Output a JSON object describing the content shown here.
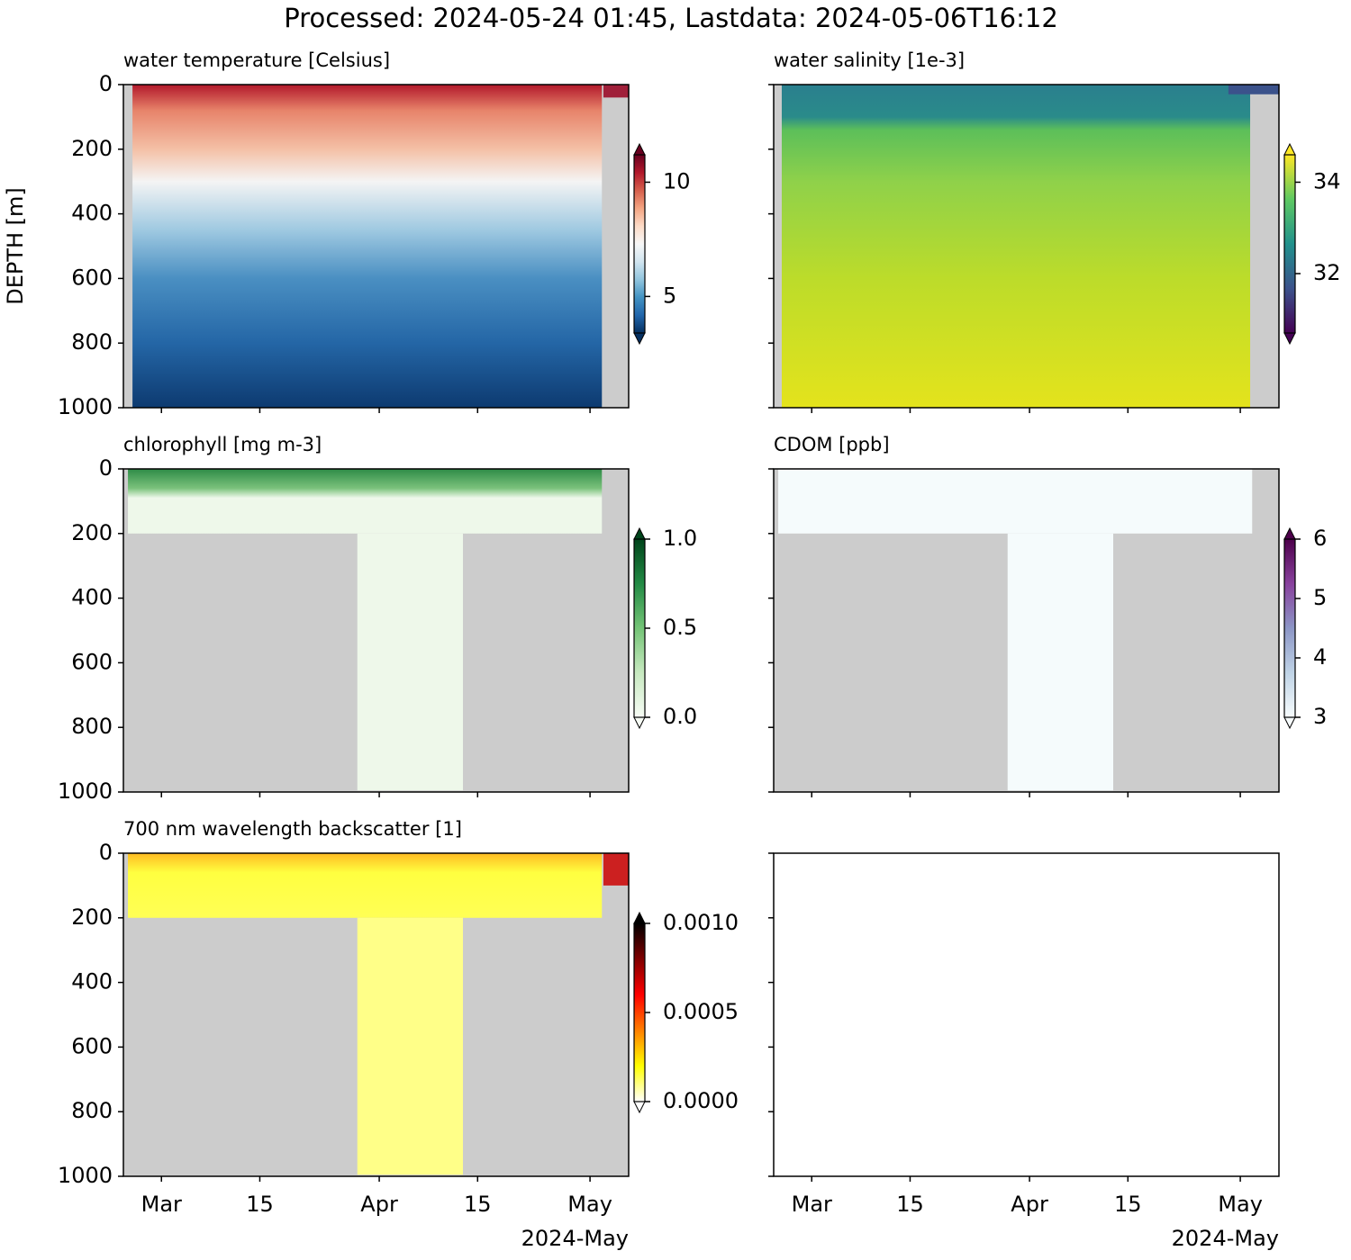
{
  "title": "Processed: 2024-05-24 01:45, Lastdata: 2024-05-06T16:12",
  "chart_data": [
    {
      "type": "heatmap",
      "title": "water temperature [Celsius]",
      "ylabel": "DEPTH [m]",
      "ylim": [
        1000,
        0
      ],
      "yticks": [
        0,
        200,
        400,
        600,
        800,
        1000
      ],
      "ytick_labels": true,
      "xlim": [
        "2024-02-24T14:00",
        "2024-05-06T12:00"
      ],
      "xticks": [
        {
          "value": "2024-03-01",
          "label": "Mar"
        },
        {
          "value": "2024-03-15",
          "label": "15"
        },
        {
          "value": "2024-04-01",
          "label": "Apr"
        },
        {
          "value": "2024-04-15",
          "label": "15"
        },
        {
          "value": "2024-05-01",
          "label": "May"
        }
      ],
      "xtick_labels": false,
      "colorbar": {
        "lim": [
          3.4,
          11.2
        ],
        "ticks": [
          5,
          10
        ],
        "extend": "both",
        "colors": [
          "#053061",
          "#2166ac",
          "#4393c3",
          "#92c5de",
          "#d1e5f0",
          "#f7f7f7",
          "#fddbc7",
          "#f4a582",
          "#d6604d",
          "#b2182b",
          "#67001f"
        ]
      }
    },
    {
      "type": "heatmap",
      "title": "water salinity [1e-3]",
      "ylim": [
        1000,
        0
      ],
      "yticks": [
        0,
        200,
        400,
        600,
        800,
        1000
      ],
      "ytick_labels": false,
      "xlim": [
        "2024-02-24T14:00",
        "2024-05-06T12:00"
      ],
      "xticks": [
        {
          "value": "2024-03-01",
          "label": "Mar"
        },
        {
          "value": "2024-03-15",
          "label": "15"
        },
        {
          "value": "2024-04-01",
          "label": "Apr"
        },
        {
          "value": "2024-04-15",
          "label": "15"
        },
        {
          "value": "2024-05-01",
          "label": "May"
        }
      ],
      "xtick_labels": false,
      "colorbar": {
        "lim": [
          30.7,
          34.6
        ],
        "ticks": [
          32,
          34
        ],
        "extend": "both",
        "colors": [
          "#440154",
          "#3b528b",
          "#21918c",
          "#5ec962",
          "#fde725"
        ]
      }
    },
    {
      "type": "heatmap",
      "title": "chlorophyll [mg m-3]",
      "ylim": [
        1000,
        0
      ],
      "yticks": [
        0,
        200,
        400,
        600,
        800,
        1000
      ],
      "ytick_labels": true,
      "xlim": [
        "2024-02-24T14:00",
        "2024-05-06T12:00"
      ],
      "xticks": [
        {
          "value": "2024-03-01",
          "label": "Mar"
        },
        {
          "value": "2024-03-15",
          "label": "15"
        },
        {
          "value": "2024-04-01",
          "label": "Apr"
        },
        {
          "value": "2024-04-15",
          "label": "15"
        },
        {
          "value": "2024-05-01",
          "label": "May"
        }
      ],
      "xtick_labels": false,
      "colorbar": {
        "lim": [
          0,
          1
        ],
        "ticks": [
          {
            "value": 0,
            "label": "0.0"
          },
          0.5,
          {
            "value": 1,
            "label": "1.0"
          }
        ],
        "extend": "both",
        "colors": [
          "#f7fcf5",
          "#c7e9c0",
          "#74c476",
          "#238b45",
          "#00441b"
        ]
      }
    },
    {
      "type": "heatmap",
      "title": "CDOM [ppb]",
      "ylim": [
        1000,
        0
      ],
      "yticks": [
        0,
        200,
        400,
        600,
        800,
        1000
      ],
      "ytick_labels": false,
      "xlim": [
        "2024-02-24T14:00",
        "2024-05-06T12:00"
      ],
      "xticks": [
        {
          "value": "2024-03-01",
          "label": "Mar"
        },
        {
          "value": "2024-03-15",
          "label": "15"
        },
        {
          "value": "2024-04-01",
          "label": "Apr"
        },
        {
          "value": "2024-04-15",
          "label": "15"
        },
        {
          "value": "2024-05-01",
          "label": "May"
        }
      ],
      "xtick_labels": false,
      "colorbar": {
        "lim": [
          3,
          6
        ],
        "ticks": [
          3,
          4,
          5,
          6
        ],
        "extend": "both",
        "colors": [
          "#f7fcfd",
          "#bfd3e6",
          "#8c96c6",
          "#88419d",
          "#4d004b"
        ]
      }
    },
    {
      "type": "heatmap",
      "title": "700 nm wavelength backscatter [1]",
      "ylim": [
        1000,
        0
      ],
      "yticks": [
        0,
        200,
        400,
        600,
        800,
        1000
      ],
      "ytick_labels": true,
      "xlim": [
        "2024-02-24T14:00",
        "2024-05-06T12:00"
      ],
      "xticks": [
        {
          "value": "2024-03-01",
          "label": "Mar"
        },
        {
          "value": "2024-03-15",
          "label": "15"
        },
        {
          "value": "2024-04-01",
          "label": "Apr"
        },
        {
          "value": "2024-04-15",
          "label": "15"
        },
        {
          "value": "2024-05-01",
          "label": "May"
        }
      ],
      "xtick_labels": true,
      "x_offset_label": "2024-May",
      "colorbar": {
        "lim": [
          0,
          0.001
        ],
        "ticks": [
          {
            "value": 0,
            "label": "0.0000"
          },
          {
            "value": 0.0005,
            "label": "0.0005"
          },
          {
            "value": 0.001,
            "label": "0.0010"
          }
        ],
        "extend": "both",
        "colors": [
          "#ffffff",
          "#ffff00",
          "#ff8000",
          "#ff0000",
          "#800000",
          "#000000"
        ]
      }
    },
    {
      "type": "empty",
      "ylim": [
        1000,
        0
      ],
      "yticks": [
        0,
        200,
        400,
        600,
        800,
        1000
      ],
      "ytick_labels": false,
      "xlim": [
        "2024-02-24T14:00",
        "2024-05-06T12:00"
      ],
      "xticks": [
        {
          "value": "2024-03-01",
          "label": "Mar"
        },
        {
          "value": "2024-03-15",
          "label": "15"
        },
        {
          "value": "2024-04-01",
          "label": "Apr"
        },
        {
          "value": "2024-04-15",
          "label": "15"
        },
        {
          "value": "2024-05-01",
          "label": "May"
        }
      ],
      "xtick_labels": true,
      "x_offset_label": "2024-May"
    }
  ]
}
